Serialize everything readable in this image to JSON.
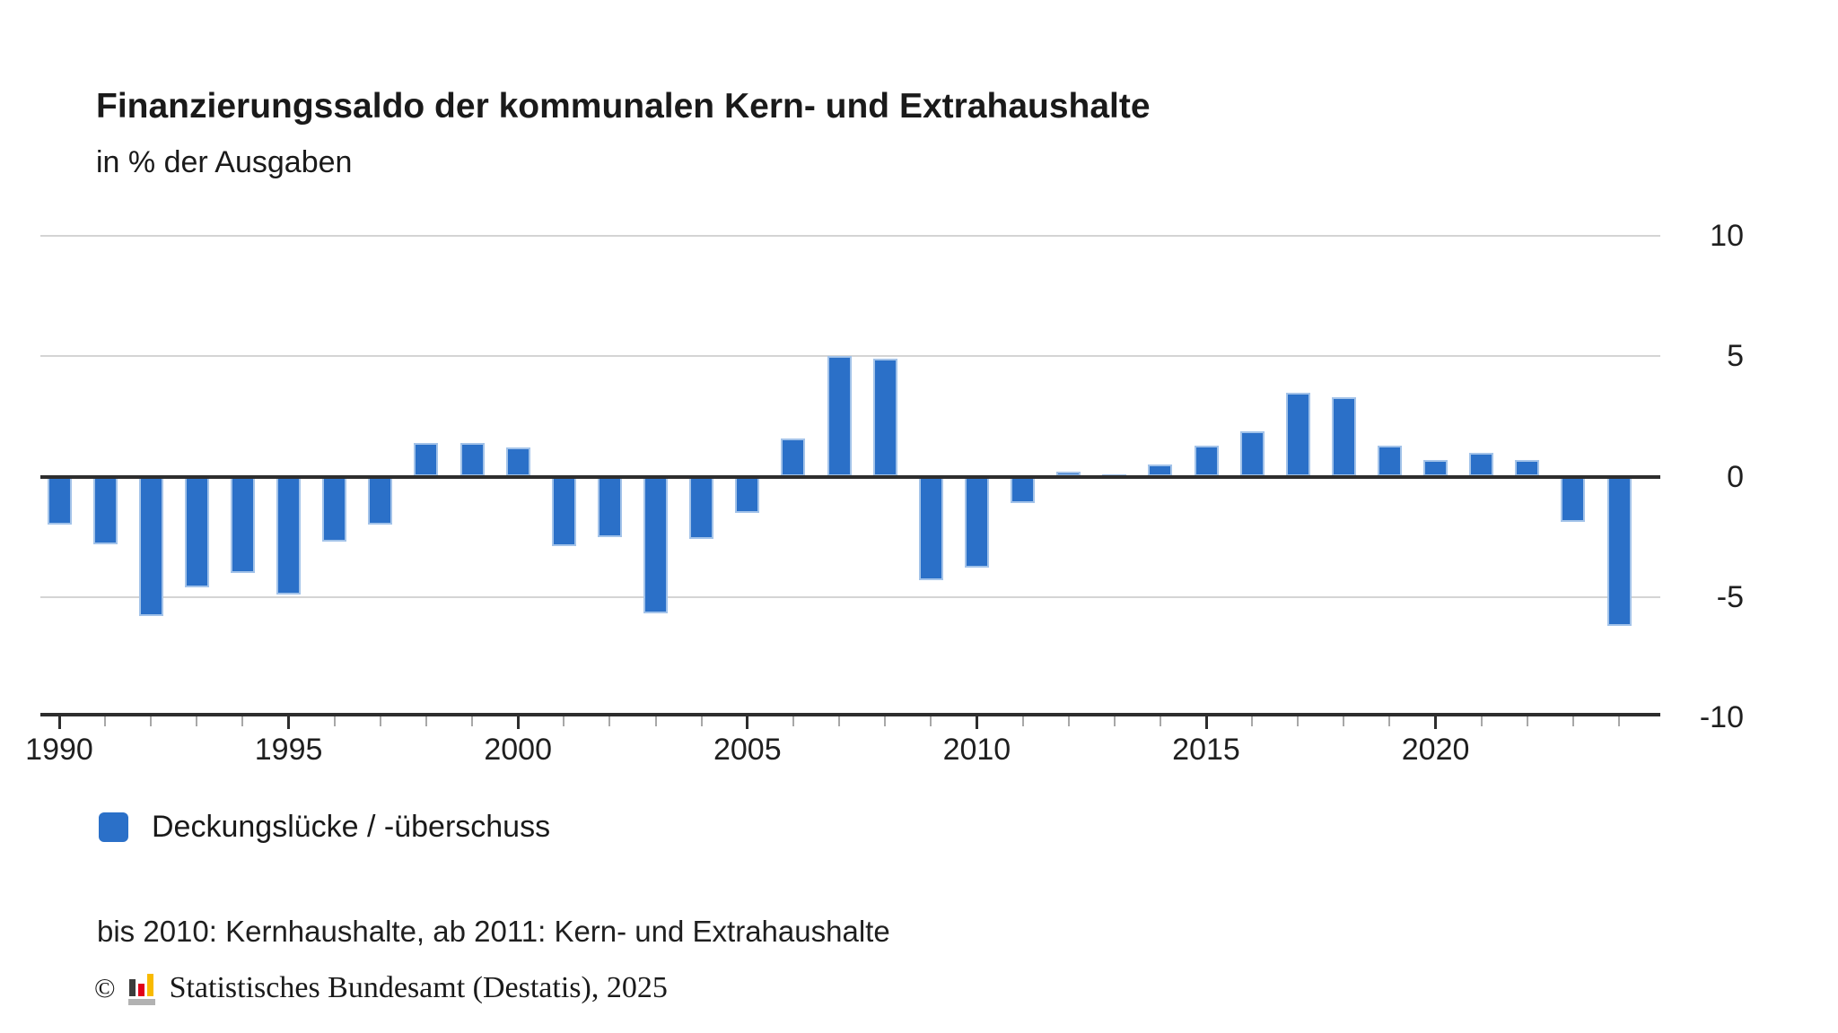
{
  "header": {
    "title": "Finanzierungssaldo der kommunalen Kern- und Extrahaushalte",
    "subtitle": "in % der Ausgaben"
  },
  "chart_data": {
    "type": "bar",
    "title": "Finanzierungssaldo der kommunalen Kern- und Extrahaushalte",
    "subtitle": "in % der Ausgaben",
    "unit": "% der Ausgaben",
    "categories": [
      1990,
      1991,
      1992,
      1993,
      1994,
      1995,
      1996,
      1997,
      1998,
      1999,
      2000,
      2001,
      2002,
      2003,
      2004,
      2005,
      2006,
      2007,
      2008,
      2009,
      2010,
      2011,
      2012,
      2013,
      2014,
      2015,
      2016,
      2017,
      2018,
      2019,
      2020,
      2021,
      2022,
      2023,
      2024
    ],
    "values": [
      -2.0,
      -2.8,
      -5.8,
      -4.6,
      -4.0,
      -4.9,
      -2.7,
      -2.0,
      1.4,
      1.4,
      1.2,
      -2.9,
      -2.5,
      -5.7,
      -2.6,
      -1.5,
      1.6,
      5.0,
      4.9,
      -4.3,
      -3.8,
      -1.1,
      0.2,
      0.1,
      0.5,
      1.3,
      1.9,
      3.5,
      3.3,
      1.3,
      0.7,
      1.0,
      0.7,
      -1.9,
      -6.2
    ],
    "series_name": "Deckungslücke / -überschuss",
    "ylim": [
      -10,
      10
    ],
    "yticks": [
      10,
      5,
      0,
      -5,
      -10
    ],
    "y_gridline_values": [
      10,
      5,
      -5
    ],
    "y_axis_side": "right",
    "x_labeled_ticks": [
      1990,
      1995,
      2000,
      2005,
      2010,
      2015,
      2020
    ],
    "tick_every_year": true,
    "grid": "horizontal",
    "legend_position": "bottom-left",
    "bar_color": "#2b70c8",
    "bar_border_color": "#a3c3e9",
    "grid_color": "#d4d4d4",
    "axis_color": "#2d2d2d",
    "minor_tick_color": "#a8a8a8"
  },
  "legend": {
    "label": "Deckungslücke / -überschuss",
    "swatch_color": "#2b70c8"
  },
  "footnote": {
    "text": "bis 2010: Kernhaushalte, ab 2011: Kern- und Extrahaushalte"
  },
  "copyright": {
    "symbol": "©",
    "text": "Statistisches Bundesamt (Destatis), 2025",
    "logo_colors": {
      "black": "#3c3c3b",
      "red": "#e10019",
      "gold": "#f8ba00",
      "gray": "#b2b2b2"
    }
  }
}
